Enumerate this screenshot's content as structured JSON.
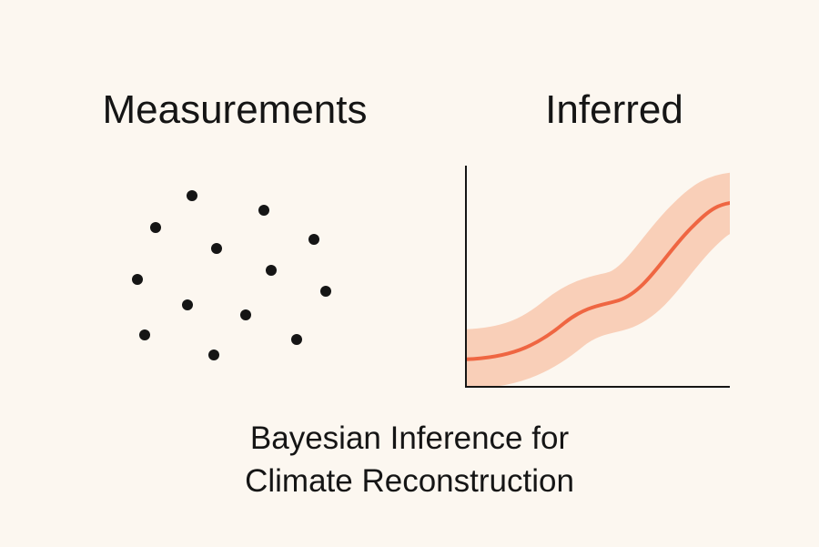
{
  "left": {
    "title": "Measurements"
  },
  "right": {
    "title": "Inferred"
  },
  "caption": {
    "lines": [
      "Bayesian Inference for",
      "Climate Reconstruction"
    ]
  }
}
